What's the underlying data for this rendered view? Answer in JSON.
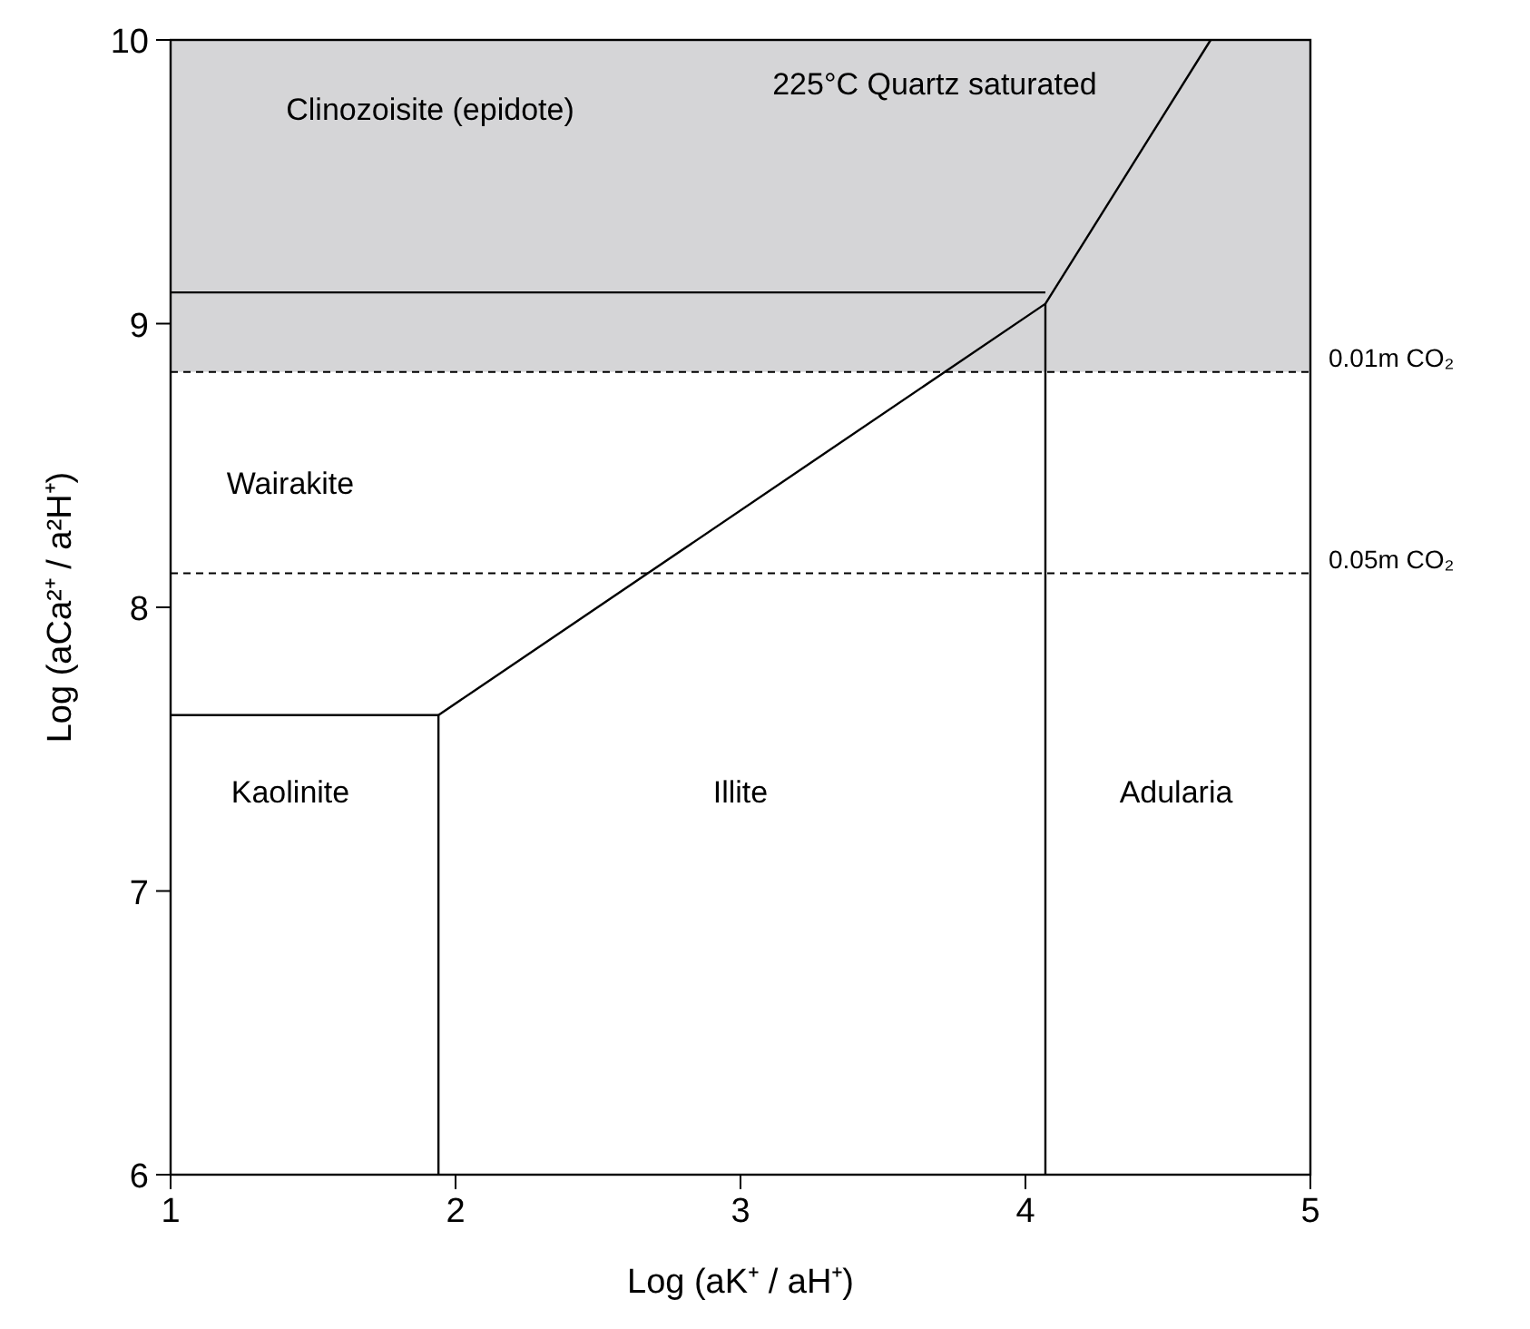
{
  "chart_data": {
    "type": "line",
    "xlabel": "Log (aK⁺ / aH⁺)",
    "ylabel": "Log (aCa²⁺ / a²H⁺)",
    "xlim": [
      1,
      5
    ],
    "ylim": [
      6,
      10
    ],
    "xticks": [
      1,
      2,
      3,
      4,
      5
    ],
    "yticks": [
      6,
      7,
      8,
      9,
      10
    ],
    "grid": false,
    "marker": "none",
    "line_style": "solid",
    "series": [
      {
        "color": "#000000",
        "x": [
          1,
          1.94
        ],
        "values": [
          7.62,
          7.62
        ]
      },
      {
        "color": "#000000",
        "x": [
          1.94,
          1.94
        ],
        "values": [
          6,
          7.62
        ]
      },
      {
        "color": "#000000",
        "x": [
          1.94,
          4.07,
          4.65
        ],
        "values": [
          7.62,
          9.07,
          10
        ]
      },
      {
        "color": "#000000",
        "x": [
          4.07,
          4.07
        ],
        "values": [
          6,
          9.07
        ]
      },
      {
        "color": "#000000",
        "x": [
          1,
          4.07
        ],
        "values": [
          9.11,
          9.11
        ]
      }
    ],
    "bands": [
      {
        "axis": "y",
        "from": 8.83,
        "to": 10,
        "color": "#d5d5d7"
      }
    ],
    "ref_lines": [
      {
        "axis": "y",
        "value": 8.83,
        "label": "0.01m CO₂",
        "color": "#000000",
        "line_style": "dashed"
      },
      {
        "axis": "y",
        "value": 8.12,
        "label": "0.05m CO₂",
        "color": "#000000",
        "line_style": "dashed"
      }
    ],
    "annotations": [
      "Clinozoisite (epidote)",
      "225°C Quartz saturated",
      "Wairakite",
      "Kaolinite",
      "Illite",
      "Adularia"
    ]
  }
}
